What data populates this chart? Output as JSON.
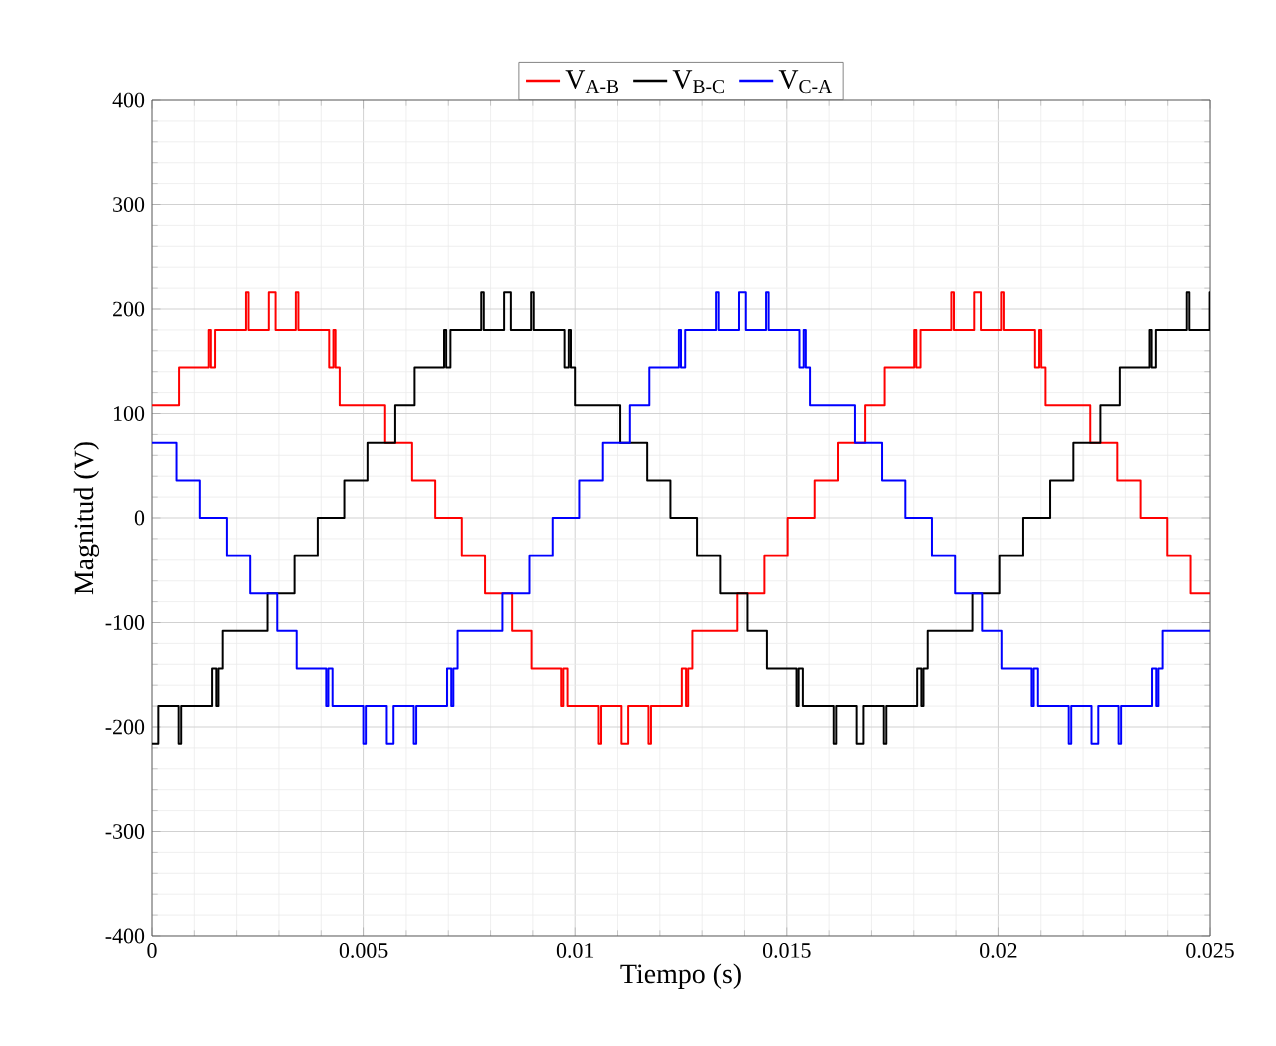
{
  "chart_data": {
    "type": "step",
    "xlabel": "Tiempo (s)",
    "ylabel": "Magnitud (V)",
    "xlim": [
      0,
      0.025
    ],
    "ylim": [
      -400,
      400
    ],
    "xticks": [
      0,
      0.005,
      0.01,
      0.015,
      0.02,
      0.025
    ],
    "yticks": [
      -400,
      -300,
      -200,
      -100,
      0,
      100,
      200,
      300,
      400
    ],
    "grid": true,
    "legend": "top",
    "series": [
      {
        "name": "V$_{A-B}$",
        "color": "#ff0000",
        "x": [
          0,
          0.00064,
          0.00134,
          0.00139,
          0.00149,
          0.00222,
          0.00228,
          0.00276,
          0.00292,
          0.0034,
          0.00346,
          0.00419,
          0.00429,
          0.00434,
          0.00444,
          0.0055,
          0.00614,
          0.00669,
          0.00732,
          0.00787,
          0.00851,
          0.00897,
          0.00967,
          0.00972,
          0.00982,
          0.01055,
          0.01061,
          0.01109,
          0.01125,
          0.01173,
          0.01179,
          0.01252,
          0.01262,
          0.01267,
          0.01277,
          0.01383,
          0.01447,
          0.01502,
          0.01566,
          0.01621,
          0.01685,
          0.01731,
          0.01801,
          0.01806,
          0.01816,
          0.01889,
          0.01895,
          0.01943,
          0.01959,
          0.02007,
          0.02013,
          0.02086,
          0.02096,
          0.02101,
          0.02111,
          0.02217,
          0.02281,
          0.02336,
          0.02399,
          0.02454,
          0.025
        ],
        "values": [
          108,
          144,
          180,
          144,
          180,
          216,
          180,
          216,
          180,
          216,
          180,
          144,
          180,
          144,
          108,
          72,
          36,
          0,
          -36,
          -72,
          -108,
          -144,
          -180,
          -144,
          -180,
          -216,
          -180,
          -216,
          -180,
          -216,
          -180,
          -144,
          -180,
          -144,
          -108,
          -72,
          -36,
          0,
          36,
          72,
          108,
          144,
          180,
          144,
          180,
          216,
          180,
          216,
          180,
          216,
          180,
          144,
          180,
          144,
          108,
          72,
          36,
          0,
          -36,
          -72,
          -72
        ]
      },
      {
        "name": "V$_{B-C}$",
        "color": "#000000",
        "x": [
          0,
          0.00015,
          0.00063,
          0.00069,
          0.00142,
          0.00152,
          0.00157,
          0.00167,
          0.00273,
          0.00337,
          0.00392,
          0.00455,
          0.0051,
          0.00574,
          0.0062,
          0.0069,
          0.00695,
          0.00705,
          0.00778,
          0.00784,
          0.00832,
          0.00848,
          0.00896,
          0.00902,
          0.00975,
          0.00985,
          0.0099,
          0.01,
          0.01106,
          0.0117,
          0.01225,
          0.01288,
          0.01343,
          0.01407,
          0.01453,
          0.01523,
          0.01528,
          0.01538,
          0.01611,
          0.01617,
          0.01665,
          0.01681,
          0.01729,
          0.01735,
          0.01808,
          0.01818,
          0.01823,
          0.01833,
          0.01939,
          0.02003,
          0.02058,
          0.02122,
          0.02177,
          0.02241,
          0.02287,
          0.02357,
          0.02362,
          0.02372,
          0.02445,
          0.02451,
          0.02499,
          0.025
        ],
        "values": [
          -216,
          -180,
          -216,
          -180,
          -144,
          -180,
          -144,
          -108,
          -72,
          -36,
          0,
          36,
          72,
          108,
          144,
          180,
          144,
          180,
          216,
          180,
          216,
          180,
          216,
          180,
          144,
          180,
          144,
          108,
          72,
          36,
          0,
          -36,
          -72,
          -108,
          -144,
          -180,
          -144,
          -180,
          -216,
          -180,
          -216,
          -180,
          -216,
          -180,
          -144,
          -180,
          -144,
          -108,
          -72,
          -36,
          0,
          36,
          72,
          108,
          144,
          180,
          144,
          180,
          216,
          180,
          216,
          216
        ]
      },
      {
        "name": "V$_{C-A}$",
        "color": "#0000ff",
        "x": [
          0,
          0.00058,
          0.00113,
          0.00177,
          0.00232,
          0.00296,
          0.00342,
          0.00412,
          0.00417,
          0.00427,
          0.005,
          0.00506,
          0.00554,
          0.0057,
          0.00618,
          0.00624,
          0.00697,
          0.00707,
          0.00712,
          0.00722,
          0.00828,
          0.00892,
          0.00947,
          0.0101,
          0.01065,
          0.01129,
          0.01175,
          0.01245,
          0.0125,
          0.0126,
          0.01333,
          0.01339,
          0.01387,
          0.01403,
          0.01451,
          0.01457,
          0.0153,
          0.0154,
          0.01545,
          0.01555,
          0.01661,
          0.01725,
          0.0178,
          0.01843,
          0.01898,
          0.01962,
          0.02008,
          0.02078,
          0.02083,
          0.02093,
          0.02166,
          0.02172,
          0.0222,
          0.02236,
          0.02284,
          0.0229,
          0.02363,
          0.02373,
          0.02378,
          0.02388,
          0.025
        ],
        "values": [
          72,
          36,
          0,
          -36,
          -72,
          -108,
          -144,
          -180,
          -144,
          -180,
          -216,
          -180,
          -216,
          -180,
          -216,
          -180,
          -144,
          -180,
          -144,
          -108,
          -72,
          -36,
          0,
          36,
          72,
          108,
          144,
          180,
          144,
          180,
          216,
          180,
          216,
          180,
          216,
          180,
          144,
          180,
          144,
          108,
          72,
          36,
          0,
          -36,
          -72,
          -108,
          -144,
          -180,
          -144,
          -180,
          -216,
          -180,
          -216,
          -180,
          -216,
          -180,
          -144,
          -180,
          -144,
          -108,
          -108
        ]
      }
    ]
  }
}
